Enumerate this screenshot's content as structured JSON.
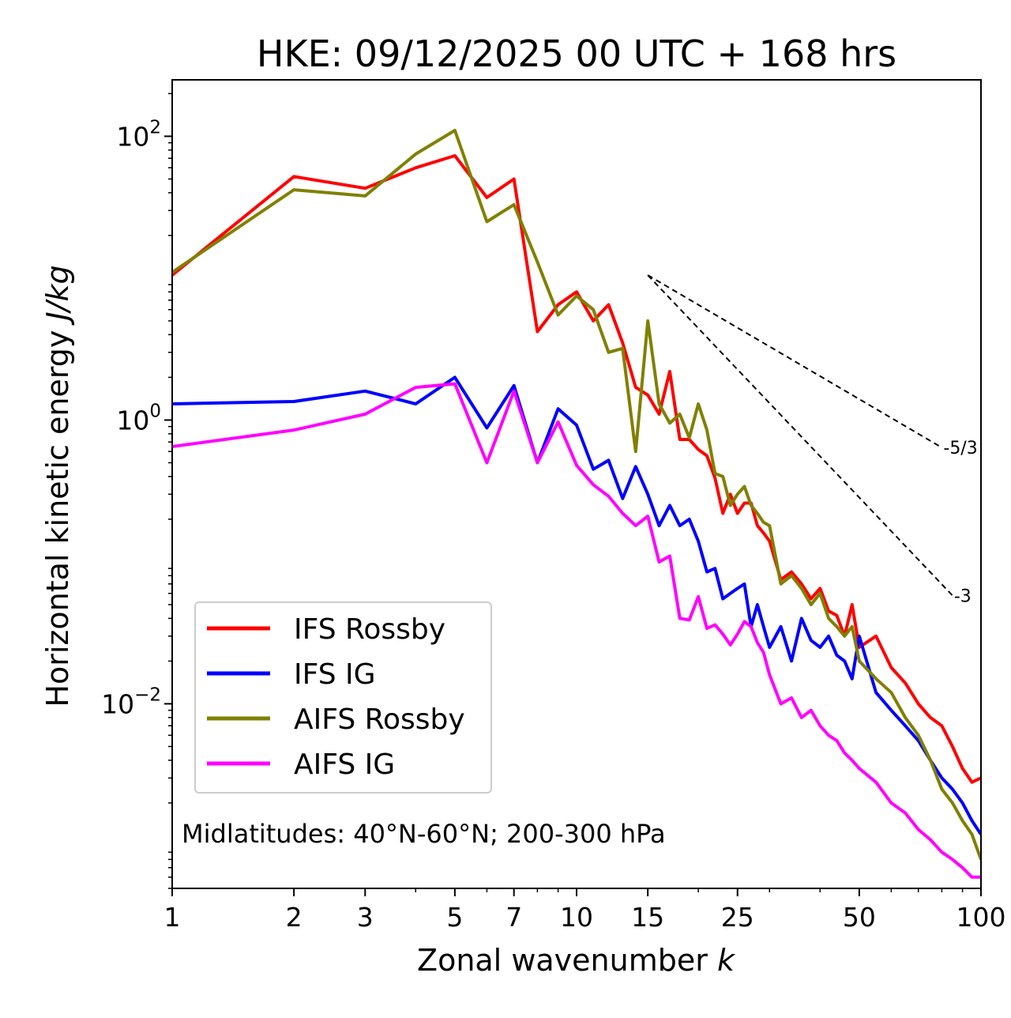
{
  "chart_data": {
    "type": "line",
    "title": "HKE: 09/12/2025 00 UTC + 168 hrs",
    "xlabel_text": "Zonal wavenumber ",
    "xlabel_var": "k",
    "ylabel_text": "Horizontal kinetic energy ",
    "ylabel_unit": "J/kg",
    "xscale": "log",
    "yscale": "log",
    "xlim": [
      1,
      100
    ],
    "ylim": [
      0.0005,
      250
    ],
    "xticks": [
      1,
      2,
      3,
      5,
      7,
      10,
      15,
      25,
      50,
      100
    ],
    "xtick_labels": [
      "1",
      "2",
      "3",
      "5",
      "7",
      "10",
      "15",
      "25",
      "50",
      "100"
    ],
    "yticks": [
      {
        "value": 100,
        "base": "10",
        "exp": "2"
      },
      {
        "value": 1,
        "base": "10",
        "exp": "0"
      },
      {
        "value": 0.01,
        "base": "10",
        "exp": "−2"
      }
    ],
    "annotation": "Midlatitudes: 40°N-60°N; 200-300 hPa",
    "legend_location": "lower-left",
    "series": [
      {
        "name": "IFS Rossby",
        "color": "#ff0000",
        "x": [
          1,
          2,
          3,
          4,
          5,
          6,
          7,
          8,
          9,
          10,
          11,
          12,
          13,
          14,
          15,
          16,
          17,
          18,
          19,
          20,
          21,
          22,
          23,
          24,
          25,
          26,
          27,
          28,
          29,
          30,
          32,
          34,
          36,
          38,
          40,
          42,
          44,
          46,
          48,
          50,
          55,
          60,
          65,
          70,
          75,
          80,
          85,
          90,
          95,
          100
        ],
        "values": [
          10.5,
          52,
          43,
          60,
          73,
          37,
          50,
          4.2,
          6.5,
          8,
          5,
          6.5,
          3.5,
          1.7,
          1.5,
          1.1,
          2.2,
          0.73,
          0.73,
          0.62,
          0.56,
          0.39,
          0.22,
          0.3,
          0.22,
          0.26,
          0.26,
          0.18,
          0.16,
          0.14,
          0.075,
          0.085,
          0.07,
          0.055,
          0.065,
          0.045,
          0.042,
          0.03,
          0.05,
          0.025,
          0.03,
          0.018,
          0.014,
          0.01,
          0.008,
          0.007,
          0.005,
          0.0035,
          0.0028,
          0.003
        ]
      },
      {
        "name": "IFS IG",
        "color": "#0000ff",
        "x": [
          1,
          2,
          3,
          4,
          5,
          6,
          7,
          8,
          9,
          10,
          11,
          12,
          13,
          14,
          15,
          16,
          17,
          18,
          19,
          20,
          21,
          22,
          23,
          24,
          25,
          26,
          27,
          28,
          29,
          30,
          32,
          34,
          36,
          38,
          40,
          42,
          44,
          46,
          48,
          50,
          55,
          60,
          65,
          70,
          75,
          80,
          85,
          90,
          95,
          100
        ],
        "values": [
          1.3,
          1.35,
          1.6,
          1.3,
          2.0,
          0.88,
          1.75,
          0.5,
          1.2,
          0.92,
          0.45,
          0.52,
          0.28,
          0.47,
          0.3,
          0.18,
          0.25,
          0.18,
          0.2,
          0.14,
          0.085,
          0.09,
          0.055,
          0.06,
          0.065,
          0.07,
          0.035,
          0.05,
          0.035,
          0.025,
          0.035,
          0.02,
          0.04,
          0.028,
          0.025,
          0.03,
          0.022,
          0.02,
          0.015,
          0.03,
          0.012,
          0.009,
          0.007,
          0.0055,
          0.004,
          0.003,
          0.0025,
          0.002,
          0.0015,
          0.0012
        ]
      },
      {
        "name": "AIFS Rossby",
        "color": "#808000",
        "x": [
          1,
          2,
          3,
          4,
          5,
          6,
          7,
          8,
          9,
          10,
          11,
          12,
          13,
          14,
          15,
          16,
          17,
          18,
          19,
          20,
          21,
          22,
          23,
          24,
          25,
          26,
          27,
          28,
          29,
          30,
          32,
          34,
          36,
          38,
          40,
          42,
          44,
          46,
          48,
          50,
          55,
          60,
          65,
          70,
          75,
          80,
          85,
          90,
          95,
          100
        ],
        "values": [
          11,
          42,
          38,
          75,
          110,
          25,
          33,
          13,
          5.5,
          7.5,
          6,
          3,
          3.2,
          0.6,
          5,
          1.3,
          0.95,
          1.1,
          0.75,
          1.3,
          0.85,
          0.42,
          0.4,
          0.25,
          0.3,
          0.34,
          0.25,
          0.22,
          0.19,
          0.18,
          0.07,
          0.08,
          0.065,
          0.05,
          0.06,
          0.04,
          0.035,
          0.03,
          0.035,
          0.02,
          0.015,
          0.012,
          0.008,
          0.006,
          0.004,
          0.0025,
          0.002,
          0.0015,
          0.0012,
          0.0008
        ]
      },
      {
        "name": "AIFS IG",
        "color": "#ff00ff",
        "x": [
          1,
          2,
          3,
          4,
          5,
          6,
          7,
          8,
          9,
          10,
          11,
          12,
          13,
          14,
          15,
          16,
          17,
          18,
          19,
          20,
          21,
          22,
          23,
          24,
          25,
          26,
          27,
          28,
          29,
          30,
          32,
          34,
          36,
          38,
          40,
          42,
          44,
          46,
          48,
          50,
          55,
          60,
          65,
          70,
          75,
          80,
          85,
          90,
          95,
          100
        ],
        "values": [
          0.65,
          0.85,
          1.1,
          1.7,
          1.8,
          0.5,
          1.6,
          0.5,
          0.97,
          0.48,
          0.35,
          0.29,
          0.22,
          0.18,
          0.21,
          0.1,
          0.11,
          0.04,
          0.039,
          0.057,
          0.034,
          0.036,
          0.031,
          0.026,
          0.031,
          0.038,
          0.035,
          0.027,
          0.023,
          0.016,
          0.01,
          0.011,
          0.008,
          0.009,
          0.007,
          0.006,
          0.0055,
          0.0045,
          0.004,
          0.0035,
          0.0028,
          0.002,
          0.0017,
          0.0013,
          0.0011,
          0.0009,
          0.0008,
          0.0007,
          0.0006,
          0.0006
        ]
      }
    ],
    "reference_lines": [
      {
        "slope_label": "-5/3",
        "x": [
          15,
          80
        ],
        "y": [
          10.5,
          0.64
        ]
      },
      {
        "slope_label": "-3",
        "x": [
          15,
          85
        ],
        "y": [
          10.5,
          0.058
        ]
      }
    ]
  }
}
